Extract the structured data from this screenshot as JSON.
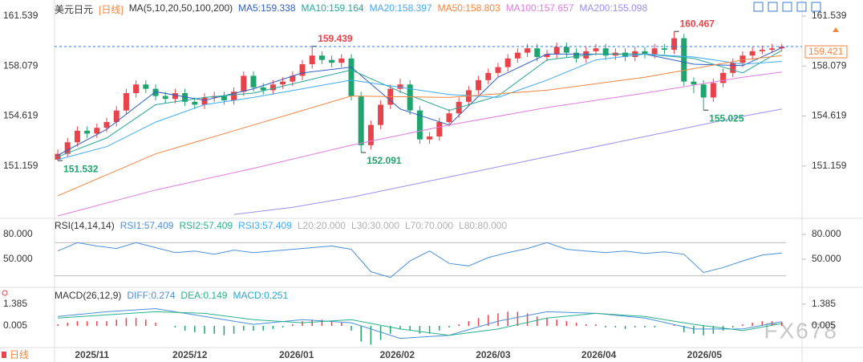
{
  "chart_data": [
    {
      "type": "candlestick",
      "title": "美元日元",
      "period": "[日线]",
      "indicator": "MA(5,10,20,50,100,200)",
      "up_color": "#e8434a",
      "down_color": "#1fa46d",
      "candles": [
        [
          151.6,
          152.3,
          151.532,
          152.0
        ],
        [
          152.0,
          153.1,
          151.8,
          152.8
        ],
        [
          152.8,
          153.9,
          152.5,
          153.6
        ],
        [
          153.6,
          153.9,
          153.1,
          153.4
        ],
        [
          153.4,
          154.1,
          153.1,
          153.8
        ],
        [
          153.8,
          154.5,
          153.5,
          154.2
        ],
        [
          154.2,
          155.3,
          153.9,
          155.0
        ],
        [
          155.0,
          156.5,
          154.7,
          156.2
        ],
        [
          156.2,
          157.1,
          155.9,
          156.8
        ],
        [
          156.8,
          157.1,
          156.2,
          156.5
        ],
        [
          156.5,
          156.8,
          155.7,
          156.0
        ],
        [
          156.0,
          156.3,
          155.5,
          155.8
        ],
        [
          155.8,
          156.5,
          155.5,
          156.2
        ],
        [
          156.2,
          156.5,
          155.3,
          155.6
        ],
        [
          155.6,
          155.9,
          155.1,
          155.4
        ],
        [
          155.4,
          156.2,
          155.1,
          155.9
        ],
        [
          155.9,
          156.3,
          155.6,
          156.0
        ],
        [
          156.0,
          156.3,
          155.4,
          155.7
        ],
        [
          155.7,
          156.6,
          155.4,
          156.3
        ],
        [
          156.3,
          157.7,
          156.0,
          157.4
        ],
        [
          157.4,
          157.7,
          156.3,
          156.6
        ],
        [
          156.6,
          156.9,
          156.1,
          156.4
        ],
        [
          156.4,
          157.1,
          156.1,
          156.8
        ],
        [
          156.8,
          157.3,
          156.5,
          157.0
        ],
        [
          157.0,
          157.7,
          156.7,
          157.4
        ],
        [
          157.4,
          158.5,
          157.1,
          158.2
        ],
        [
          158.2,
          159.439,
          157.9,
          158.8
        ],
        [
          158.8,
          159.1,
          158.2,
          158.5
        ],
        [
          158.5,
          158.8,
          158.0,
          158.3
        ],
        [
          158.3,
          158.9,
          158.0,
          158.6
        ],
        [
          158.6,
          158.9,
          155.7,
          156.0
        ],
        [
          156.0,
          156.3,
          152.091,
          152.6
        ],
        [
          152.6,
          154.3,
          152.3,
          154.0
        ],
        [
          154.0,
          155.7,
          153.7,
          155.4
        ],
        [
          155.4,
          156.8,
          155.1,
          156.5
        ],
        [
          156.5,
          157.2,
          156.2,
          156.8
        ],
        [
          156.8,
          157.1,
          154.7,
          155.0
        ],
        [
          155.0,
          155.3,
          152.7,
          153.0
        ],
        [
          153.0,
          153.5,
          152.7,
          153.2
        ],
        [
          153.2,
          154.5,
          152.9,
          154.2
        ],
        [
          154.2,
          155.1,
          153.9,
          154.8
        ],
        [
          154.8,
          155.9,
          154.5,
          155.6
        ],
        [
          155.6,
          156.7,
          155.3,
          156.4
        ],
        [
          156.4,
          157.4,
          156.1,
          157.1
        ],
        [
          157.1,
          157.9,
          156.8,
          157.6
        ],
        [
          157.6,
          158.3,
          157.3,
          158.0
        ],
        [
          158.0,
          158.9,
          157.7,
          158.6
        ],
        [
          158.6,
          159.3,
          158.3,
          159.0
        ],
        [
          159.0,
          159.6,
          158.7,
          159.3
        ],
        [
          159.3,
          159.6,
          158.4,
          158.7
        ],
        [
          158.7,
          159.2,
          158.4,
          158.9
        ],
        [
          158.9,
          159.7,
          158.6,
          159.4
        ],
        [
          159.4,
          159.7,
          158.7,
          159.0
        ],
        [
          159.0,
          159.3,
          158.3,
          158.6
        ],
        [
          158.6,
          159.4,
          158.3,
          159.1
        ],
        [
          159.1,
          159.6,
          158.8,
          159.3
        ],
        [
          159.3,
          159.6,
          158.5,
          158.8
        ],
        [
          158.8,
          159.3,
          158.5,
          159.0
        ],
        [
          159.0,
          159.3,
          158.4,
          158.7
        ],
        [
          158.7,
          159.4,
          158.4,
          159.1
        ],
        [
          159.1,
          159.4,
          158.6,
          158.9
        ],
        [
          158.9,
          159.6,
          158.6,
          159.3
        ],
        [
          159.3,
          159.6,
          158.9,
          159.2
        ],
        [
          159.2,
          160.467,
          158.9,
          160.0
        ],
        [
          160.0,
          160.3,
          156.7,
          157.0
        ],
        [
          157.0,
          157.3,
          156.2,
          156.8
        ],
        [
          156.8,
          157.1,
          155.025,
          155.9
        ],
        [
          155.9,
          157.2,
          155.6,
          156.9
        ],
        [
          156.9,
          157.9,
          156.6,
          157.6
        ],
        [
          157.6,
          158.6,
          157.3,
          158.3
        ],
        [
          158.3,
          159.1,
          158.0,
          158.8
        ],
        [
          158.8,
          159.4,
          158.5,
          159.1
        ],
        [
          159.1,
          159.5,
          158.9,
          159.2
        ],
        [
          159.2,
          159.6,
          159.0,
          159.3
        ],
        [
          159.3,
          159.6,
          159.1,
          159.42
        ]
      ],
      "series": [
        {
          "name": "MA5:159.338",
          "color": "#2f5fc4",
          "x": [
            0,
            5,
            10,
            15,
            20,
            25,
            30,
            35,
            40,
            45,
            50,
            55,
            60,
            65,
            70,
            74
          ],
          "values": [
            151.9,
            153.7,
            156.3,
            155.7,
            156.5,
            157.6,
            158.0,
            155.1,
            154.0,
            157.3,
            158.9,
            158.9,
            158.9,
            158.2,
            158.1,
            159.338
          ]
        },
        {
          "name": "MA10:159.164",
          "color": "#26a69a",
          "x": [
            0,
            5,
            10,
            15,
            20,
            25,
            30,
            35,
            40,
            45,
            50,
            55,
            60,
            65,
            70,
            74
          ],
          "values": [
            151.8,
            153.1,
            155.4,
            155.9,
            156.2,
            157.0,
            157.8,
            156.3,
            155.0,
            156.0,
            158.5,
            158.9,
            158.9,
            158.6,
            157.6,
            159.164
          ]
        },
        {
          "name": "MA20:158.397",
          "color": "#3fa9f5",
          "x": [
            0,
            5,
            10,
            15,
            20,
            25,
            30,
            35,
            40,
            45,
            50,
            55,
            60,
            65,
            70,
            74
          ],
          "values": [
            151.6,
            152.5,
            154.2,
            155.4,
            155.9,
            156.5,
            157.1,
            156.6,
            156.1,
            155.9,
            157.1,
            158.5,
            158.9,
            158.7,
            158.2,
            158.397
          ]
        },
        {
          "name": "MA50:158.803",
          "color": "#f5853f",
          "x": [
            0,
            10,
            20,
            30,
            40,
            50,
            60,
            70,
            74
          ],
          "values": [
            149.1,
            152.0,
            154.0,
            156.0,
            155.9,
            156.4,
            157.3,
            158.5,
            158.803
          ]
        },
        {
          "name": "MA100:157.657",
          "color": "#e07be0",
          "x": [
            0,
            10,
            20,
            30,
            40,
            50,
            60,
            70,
            74
          ],
          "values": [
            147.7,
            149.5,
            151.0,
            152.6,
            154.0,
            155.2,
            156.2,
            157.3,
            157.657
          ]
        },
        {
          "name": "MA200:155.098",
          "color": "#9d8df1",
          "x": [
            18,
            24,
            30,
            40,
            50,
            60,
            70,
            74
          ],
          "values": [
            147.8,
            148.3,
            149.0,
            150.4,
            151.8,
            153.2,
            154.6,
            155.098
          ]
        }
      ],
      "annotations": [
        {
          "x": 0,
          "value": 151.532
        },
        {
          "x": 26,
          "value": 159.439
        },
        {
          "x": 31,
          "value": 152.091
        },
        {
          "x": 63,
          "value": 160.467
        },
        {
          "x": 66,
          "value": 155.025
        }
      ],
      "last_price": 159.421,
      "ylim": [
        147.65,
        162.2
      ],
      "yticks": [
        161.539,
        158.079,
        154.619,
        151.159
      ],
      "xlim": [
        -0.33,
        74.43
      ],
      "xticks": [
        {
          "value": 3.5,
          "label": "2025/11"
        },
        {
          "value": 13.5,
          "label": "2025/12"
        },
        {
          "value": 24.4,
          "label": "2026/01"
        },
        {
          "value": 34.7,
          "label": "2026/02"
        },
        {
          "value": 44.5,
          "label": "2026/03"
        },
        {
          "value": 55.3,
          "label": "2026/04"
        },
        {
          "value": 66.1,
          "label": "2026/05"
        }
      ]
    },
    {
      "type": "line",
      "title": "RSI(14,14,14)",
      "series": [
        {
          "name": "RSI1:57.409",
          "color": "#4a90d9",
          "x": [
            0,
            2,
            4,
            6,
            8,
            10,
            12,
            14,
            16,
            18,
            20,
            22,
            24,
            26,
            28,
            30,
            32,
            34,
            36,
            38,
            40,
            42,
            44,
            46,
            48,
            50,
            52,
            54,
            56,
            58,
            60,
            62,
            64,
            66,
            68,
            70,
            72,
            74
          ],
          "values": [
            60,
            70,
            66,
            63,
            70,
            64,
            58,
            60,
            56,
            61,
            58,
            60,
            62,
            64,
            66,
            62,
            35,
            28,
            48,
            60,
            45,
            42,
            52,
            58,
            63,
            70,
            62,
            60,
            58,
            60,
            57,
            59,
            56,
            34,
            40,
            48,
            55,
            57.409
          ]
        }
      ],
      "labels": [
        {
          "text": "RSI2:57.409",
          "color": "#2bb08a"
        },
        {
          "text": "RSI3:57.409",
          "color": "#3fa9f5"
        },
        {
          "text": "L20:20.000",
          "color": "#b0b0b0"
        },
        {
          "text": "L30:30.000",
          "color": "#b0b0b0"
        },
        {
          "text": "L70:70.000",
          "color": "#b0b0b0"
        },
        {
          "text": "L80:80.000",
          "color": "#b0b0b0"
        }
      ],
      "levels": [
        70,
        30
      ],
      "ylim": [
        19,
        86.8
      ],
      "yticks": [
        {
          "value": 80,
          "label": "80.000"
        },
        {
          "value": 50,
          "label": "50.000"
        }
      ],
      "xlim": [
        -0.33,
        74.43
      ]
    },
    {
      "type": "macd",
      "title": "MACD(26,12,9)",
      "series": [
        {
          "name": "DIFF:0.274",
          "color": "#4a90d9",
          "x": [
            0,
            5,
            10,
            15,
            20,
            25,
            30,
            35,
            40,
            45,
            50,
            55,
            60,
            65,
            70,
            74
          ],
          "values": [
            0.6,
            0.9,
            1.1,
            0.6,
            0.1,
            0.4,
            0.2,
            -0.8,
            -0.6,
            0.3,
            0.9,
            0.8,
            0.5,
            -0.2,
            -0.2,
            0.274
          ]
        },
        {
          "name": "DEA:0.149",
          "color": "#2bb08a",
          "x": [
            0,
            5,
            10,
            15,
            20,
            25,
            30,
            35,
            40,
            45,
            50,
            55,
            60,
            65,
            70,
            74
          ],
          "values": [
            0.5,
            0.7,
            0.9,
            0.8,
            0.4,
            0.2,
            0.4,
            -0.2,
            -0.6,
            -0.2,
            0.5,
            0.8,
            0.6,
            0.1,
            -0.3,
            0.149
          ]
        }
      ],
      "histogram": {
        "name": "MACD:0.251",
        "color": "#26a6c9",
        "up_color": "#e8434a",
        "down_color": "#1fa46d",
        "values": [
          0.1,
          0.2,
          0.3,
          0.3,
          0.3,
          0.3,
          0.4,
          0.5,
          0.5,
          0.4,
          0.2,
          0.0,
          -0.1,
          -0.3,
          -0.4,
          -0.5,
          -0.5,
          -0.6,
          -0.5,
          -0.3,
          -0.3,
          -0.3,
          -0.2,
          -0.1,
          0.1,
          0.3,
          0.4,
          0.4,
          0.3,
          0.2,
          -0.3,
          -1.0,
          -1.2,
          -0.9,
          -0.5,
          -0.2,
          -0.3,
          -0.5,
          -0.5,
          -0.3,
          -0.1,
          0.1,
          0.3,
          0.5,
          0.7,
          0.8,
          0.9,
          0.9,
          0.8,
          0.6,
          0.5,
          0.4,
          0.3,
          0.2,
          0.1,
          0.1,
          -0.1,
          -0.1,
          -0.2,
          -0.1,
          -0.1,
          -0.1,
          0.0,
          0.1,
          -0.4,
          -0.5,
          -0.6,
          -0.5,
          -0.3,
          -0.1,
          0.1,
          0.2,
          0.3,
          0.3,
          0.251
        ]
      },
      "ylim": [
        -1.33,
        1.74
      ],
      "yticks": [
        1.385,
        0.005
      ],
      "xlim": [
        -0.33,
        74.43
      ]
    }
  ],
  "footer_period": "日线",
  "watermark": "FX678"
}
